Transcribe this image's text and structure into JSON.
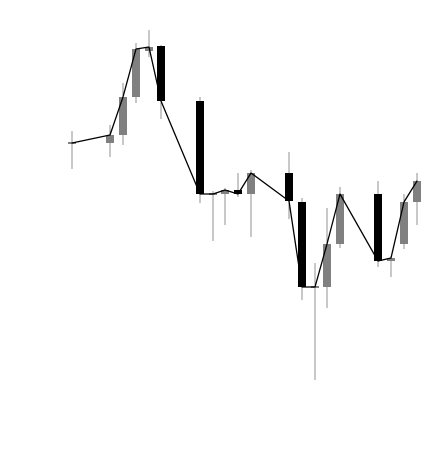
{
  "chart_data": {
    "type": "candlestick",
    "title": "",
    "xlabel": "",
    "ylabel": "",
    "axes_visible": false,
    "grid": false,
    "legend": "none",
    "colors": {
      "up": "#808080",
      "down": "#000000",
      "wick": "#909090",
      "close_line": "#000000",
      "background": "#ffffff"
    },
    "ylim": [
      0,
      449
    ],
    "candles": [
      {
        "x": 72,
        "open": 306,
        "close": 306,
        "high": 318,
        "low": 280
      },
      {
        "x": 110,
        "open": 306,
        "close": 314,
        "high": 324,
        "low": 292
      },
      {
        "x": 123,
        "open": 314,
        "close": 352,
        "high": 366,
        "low": 304
      },
      {
        "x": 136,
        "open": 352,
        "close": 400,
        "high": 406,
        "low": 346
      },
      {
        "x": 149,
        "open": 398,
        "close": 402,
        "high": 419,
        "low": 392
      },
      {
        "x": 161,
        "open": 403,
        "close": 348,
        "high": 404,
        "low": 330
      },
      {
        "x": 200,
        "open": 348,
        "close": 255,
        "high": 352,
        "low": 246
      },
      {
        "x": 213,
        "open": 255,
        "close": 255,
        "high": 258,
        "low": 208
      },
      {
        "x": 225,
        "open": 255,
        "close": 259,
        "high": 261,
        "low": 224
      },
      {
        "x": 238,
        "open": 259,
        "close": 255,
        "high": 276,
        "low": 252
      },
      {
        "x": 251,
        "open": 255,
        "close": 276,
        "high": 279,
        "low": 212
      },
      {
        "x": 289,
        "open": 276,
        "close": 248,
        "high": 297,
        "low": 230
      },
      {
        "x": 302,
        "open": 247,
        "close": 162,
        "high": 251,
        "low": 149
      },
      {
        "x": 315,
        "open": 162,
        "close": 162,
        "high": 186,
        "low": 69
      },
      {
        "x": 327,
        "open": 162,
        "close": 205,
        "high": 241,
        "low": 141
      },
      {
        "x": 340,
        "open": 205,
        "close": 255,
        "high": 262,
        "low": 201
      },
      {
        "x": 378,
        "open": 255,
        "close": 188,
        "high": 268,
        "low": 182
      },
      {
        "x": 391,
        "open": 188,
        "close": 191,
        "high": 193,
        "low": 172
      },
      {
        "x": 404,
        "open": 205,
        "close": 247,
        "high": 255,
        "low": 200
      },
      {
        "x": 417,
        "open": 247,
        "close": 268,
        "high": 276,
        "low": 224
      }
    ],
    "close_line": [
      [
        72,
        306
      ],
      [
        110,
        314
      ],
      [
        123,
        352
      ],
      [
        136,
        400
      ],
      [
        149,
        402
      ],
      [
        161,
        348
      ],
      [
        200,
        255
      ],
      [
        213,
        255
      ],
      [
        225,
        259
      ],
      [
        238,
        255
      ],
      [
        251,
        276
      ],
      [
        289,
        248
      ],
      [
        302,
        162
      ],
      [
        315,
        162
      ],
      [
        327,
        205
      ],
      [
        340,
        255
      ],
      [
        378,
        188
      ],
      [
        391,
        191
      ],
      [
        404,
        247
      ],
      [
        417,
        268
      ]
    ]
  }
}
